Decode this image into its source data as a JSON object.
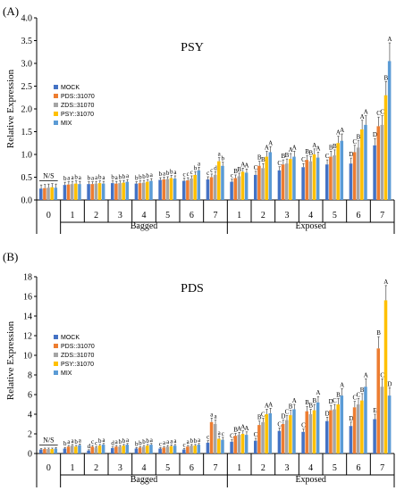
{
  "chart_data": [
    {
      "type": "bar",
      "panel_label": "(A)",
      "title": "PSY",
      "ylabel": "Relative Expression",
      "ylim": [
        0,
        4
      ],
      "yticks": [
        "0.0",
        "0.5",
        "1.0",
        "1.5",
        "2.0",
        "2.5",
        "3.0",
        "3.5",
        "4.0"
      ],
      "categories": [
        "0",
        "1",
        "2",
        "3",
        "4",
        "5",
        "6",
        "7",
        "1",
        "2",
        "3",
        "4",
        "5",
        "6",
        "7"
      ],
      "groups": [
        {
          "label": "Bagged",
          "from": 1,
          "to": 7
        },
        {
          "label": "Exposed",
          "from": 8,
          "to": 14
        }
      ],
      "ns_label": "N/S",
      "legend_position": "left",
      "series": [
        {
          "name": "MOCK",
          "color": "#4472c4",
          "values": [
            0.25,
            0.33,
            0.35,
            0.37,
            0.36,
            0.44,
            0.42,
            0.45,
            0.4,
            0.55,
            0.65,
            0.72,
            0.78,
            0.8,
            1.2
          ],
          "errors": [
            0.08,
            0.06,
            0.05,
            0.05,
            0.04,
            0.05,
            0.06,
            0.06,
            0.06,
            0.08,
            0.08,
            0.08,
            0.1,
            0.12,
            0.15
          ],
          "letters": [
            "",
            "b",
            "b",
            "b",
            "b",
            "b",
            "c",
            "c",
            "c",
            "C",
            "C",
            "C",
            "C",
            "D",
            "D"
          ]
        },
        {
          "name": "PDS::31070",
          "color": "#ed7d31",
          "values": [
            0.26,
            0.34,
            0.35,
            0.36,
            0.37,
            0.45,
            0.43,
            0.5,
            0.48,
            0.75,
            0.78,
            0.88,
            0.95,
            1.05,
            1.62
          ],
          "errors": [
            0.08,
            0.06,
            0.05,
            0.05,
            0.05,
            0.05,
            0.06,
            0.07,
            0.07,
            0.1,
            0.1,
            0.1,
            0.12,
            0.15,
            0.2
          ],
          "letters": [
            "",
            "a",
            "a",
            "a",
            "b",
            "a",
            "c",
            "c",
            "B",
            "B",
            "B",
            "B",
            "B",
            "C",
            "C"
          ]
        },
        {
          "name": "ZDS::31070",
          "color": "#a5a5a5",
          "values": [
            0.27,
            0.35,
            0.36,
            0.37,
            0.38,
            0.46,
            0.47,
            0.55,
            0.52,
            0.7,
            0.8,
            0.85,
            0.98,
            1.15,
            1.65
          ],
          "errors": [
            0.08,
            0.06,
            0.05,
            0.05,
            0.05,
            0.05,
            0.06,
            0.07,
            0.07,
            0.1,
            0.1,
            0.1,
            0.12,
            0.15,
            0.2
          ],
          "letters": [
            "",
            "a",
            "a",
            "b",
            "b",
            "b",
            "c",
            "d",
            "B",
            "B",
            "B",
            "B",
            "B",
            "B",
            "C"
          ]
        },
        {
          "name": "PSY::31070",
          "color": "#ffc000",
          "values": [
            0.28,
            0.36,
            0.37,
            0.38,
            0.4,
            0.48,
            0.55,
            0.85,
            0.62,
            0.95,
            0.9,
            1.0,
            1.25,
            1.55,
            2.3
          ],
          "errors": [
            0.08,
            0.06,
            0.05,
            0.05,
            0.05,
            0.06,
            0.07,
            0.08,
            0.08,
            0.12,
            0.12,
            0.12,
            0.15,
            0.2,
            0.3
          ],
          "letters": [
            "",
            "b",
            "b",
            "b",
            "b",
            "b",
            "b",
            "a",
            "A",
            "A",
            "A",
            "A",
            "A",
            "A",
            "B"
          ]
        },
        {
          "name": "MIX",
          "color": "#5b9bd5",
          "values": [
            0.27,
            0.35,
            0.36,
            0.4,
            0.42,
            0.47,
            0.65,
            0.75,
            0.6,
            1.05,
            0.95,
            0.93,
            1.3,
            1.65,
            3.05
          ],
          "errors": [
            0.08,
            0.06,
            0.05,
            0.05,
            0.05,
            0.06,
            0.07,
            0.08,
            0.08,
            0.12,
            0.12,
            0.12,
            0.15,
            0.2,
            0.4
          ],
          "letters": [
            "",
            "a",
            "a",
            "a",
            "a",
            "a",
            "a",
            "b",
            "A",
            "A",
            "A",
            "A",
            "A",
            "A",
            "A"
          ]
        }
      ]
    },
    {
      "type": "bar",
      "panel_label": "(B)",
      "title": "PDS",
      "ylabel": "Relative Expression",
      "ylim": [
        0,
        18
      ],
      "yticks": [
        "0",
        "2",
        "4",
        "6",
        "8",
        "10",
        "12",
        "14",
        "16",
        "18"
      ],
      "categories": [
        "0",
        "1",
        "2",
        "3",
        "4",
        "5",
        "6",
        "7",
        "1",
        "2",
        "3",
        "4",
        "5",
        "6",
        "7"
      ],
      "groups": [
        {
          "label": "Bagged",
          "from": 1,
          "to": 7
        },
        {
          "label": "Exposed",
          "from": 8,
          "to": 14
        }
      ],
      "ns_label": "N/S",
      "legend_position": "left",
      "series": [
        {
          "name": "MOCK",
          "color": "#4472c4",
          "values": [
            0.4,
            0.5,
            0.3,
            0.55,
            0.5,
            0.5,
            0.4,
            1.1,
            1.2,
            1.3,
            2.3,
            2.2,
            3.3,
            2.8,
            3.5
          ],
          "errors": [
            0.1,
            0.12,
            0.08,
            0.12,
            0.1,
            0.1,
            0.1,
            0.2,
            0.2,
            0.25,
            0.3,
            0.3,
            0.4,
            0.4,
            0.5
          ],
          "letters": [
            "",
            "b",
            "d",
            "d",
            "b",
            "c",
            "c",
            "c",
            "C",
            "C",
            "C",
            "C",
            "D",
            "D",
            "E"
          ]
        },
        {
          "name": "PDS::31070",
          "color": "#ed7d31",
          "values": [
            0.45,
            0.7,
            0.7,
            0.7,
            0.6,
            0.6,
            0.7,
            3.2,
            1.8,
            2.9,
            3.0,
            4.3,
            4.4,
            4.7,
            10.7
          ],
          "errors": [
            0.1,
            0.12,
            0.12,
            0.12,
            0.1,
            0.12,
            0.12,
            0.4,
            0.25,
            0.4,
            0.4,
            0.5,
            0.5,
            0.6,
            1.2
          ],
          "letters": [
            "",
            "a",
            "c",
            "a",
            "b",
            "a",
            "a",
            "a",
            "B",
            "B",
            "D",
            "B",
            "D",
            "C",
            "B"
          ]
        },
        {
          "name": "ZDS::31070",
          "color": "#a5a5a5",
          "values": [
            0.45,
            0.8,
            0.6,
            0.7,
            0.7,
            0.7,
            0.8,
            3.0,
            1.9,
            3.2,
            3.4,
            4.0,
            4.5,
            5.0,
            6.8
          ],
          "errors": [
            0.1,
            0.12,
            0.1,
            0.12,
            0.12,
            0.12,
            0.12,
            0.4,
            0.25,
            0.4,
            0.45,
            0.5,
            0.5,
            0.6,
            0.8
          ],
          "letters": [
            "",
            "a",
            "c",
            "b",
            "b",
            "a",
            "b",
            "a",
            "A",
            "C",
            "C",
            "B",
            "C",
            "C",
            "C"
          ]
        },
        {
          "name": "PSY::31070",
          "color": "#ffc000",
          "values": [
            0.45,
            0.7,
            0.8,
            0.8,
            0.8,
            0.75,
            0.8,
            1.5,
            2.0,
            4.0,
            3.9,
            4.4,
            5.0,
            5.4,
            15.6
          ],
          "errors": [
            0.1,
            0.12,
            0.12,
            0.12,
            0.12,
            0.12,
            0.12,
            0.25,
            0.3,
            0.5,
            0.5,
            0.6,
            0.6,
            0.7,
            1.5
          ],
          "letters": [
            "",
            "b",
            "b",
            "b",
            "b",
            "a",
            "b",
            "a",
            "A",
            "A",
            "B",
            "B",
            "B",
            "B",
            "A"
          ]
        },
        {
          "name": "MIX",
          "color": "#5b9bd5",
          "values": [
            0.5,
            0.85,
            0.9,
            0.9,
            0.9,
            0.8,
            0.9,
            1.4,
            1.9,
            4.1,
            4.5,
            5.2,
            5.9,
            6.8,
            5.9
          ],
          "errors": [
            0.1,
            0.12,
            0.12,
            0.12,
            0.12,
            0.12,
            0.12,
            0.25,
            0.3,
            0.5,
            0.5,
            0.6,
            0.7,
            0.8,
            0.8
          ],
          "letters": [
            "",
            "a",
            "a",
            "a",
            "a",
            "a",
            "a",
            "c",
            "A",
            "A",
            "A",
            "A",
            "A",
            "A",
            "D"
          ]
        }
      ]
    }
  ]
}
